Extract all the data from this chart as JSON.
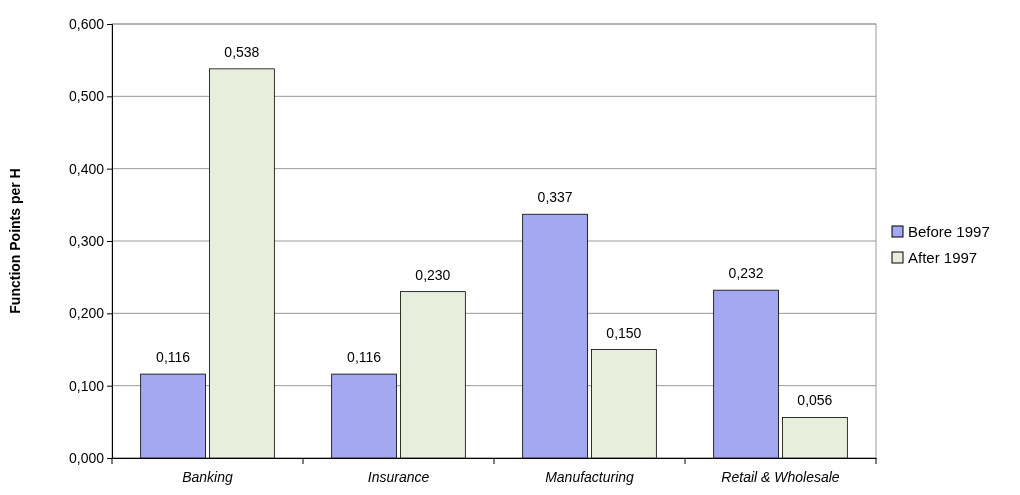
{
  "chart_data": {
    "type": "bar",
    "ylabel": "Function Points per H",
    "categories": [
      "Banking",
      "Insurance",
      "Manufacturing",
      "Retail & Wholesale"
    ],
    "series": [
      {
        "name": "Before 1997",
        "color": "#a3a8f0",
        "values": [
          0.116,
          0.116,
          0.337,
          0.232
        ],
        "value_labels": [
          "0,116",
          "0,116",
          "0,337",
          "0,232"
        ]
      },
      {
        "name": "After 1997",
        "color": "#e8eedc",
        "values": [
          0.538,
          0.23,
          0.15,
          0.056
        ],
        "value_labels": [
          "0,538",
          "0,230",
          "0,150",
          "0,056"
        ]
      }
    ],
    "ylim": [
      0,
      0.6
    ],
    "yticks": [
      {
        "value": 0,
        "label": "0,000"
      },
      {
        "value": 0.1,
        "label": "0,100"
      },
      {
        "value": 0.2,
        "label": "0,200"
      },
      {
        "value": 0.3,
        "label": "0,300"
      },
      {
        "value": 0.4,
        "label": "0,400"
      },
      {
        "value": 0.5,
        "label": "0,500"
      },
      {
        "value": 0.6,
        "label": "0,600"
      }
    ],
    "grid": "y",
    "legend": "right"
  }
}
